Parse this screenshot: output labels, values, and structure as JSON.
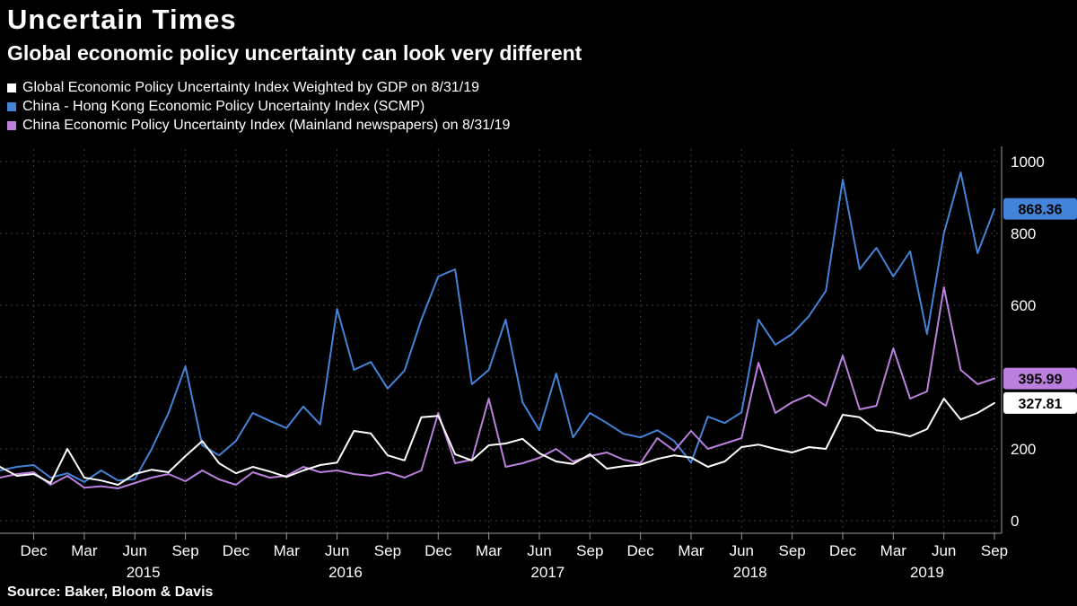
{
  "source": "Source: Baker, Bloom & Davis",
  "chart_data": {
    "type": "line",
    "title": "Uncertain Times",
    "subtitle": "Global economic policy uncertainty can look very different",
    "x_unit": "month",
    "x_start": "Oct 2014",
    "x_end": "Sep 2019",
    "ylim": [
      0,
      1000
    ],
    "y_ticks": [
      0,
      200,
      400,
      600,
      800,
      1000
    ],
    "grid": true,
    "legend_position": "top-left",
    "x_ticks": [
      {
        "index": 2,
        "label": "Dec"
      },
      {
        "index": 5,
        "label": "Mar"
      },
      {
        "index": 8,
        "label": "Jun"
      },
      {
        "index": 11,
        "label": "Sep"
      },
      {
        "index": 14,
        "label": "Dec"
      },
      {
        "index": 17,
        "label": "Mar"
      },
      {
        "index": 20,
        "label": "Jun"
      },
      {
        "index": 23,
        "label": "Sep"
      },
      {
        "index": 26,
        "label": "Dec"
      },
      {
        "index": 29,
        "label": "Mar"
      },
      {
        "index": 32,
        "label": "Jun"
      },
      {
        "index": 35,
        "label": "Sep"
      },
      {
        "index": 38,
        "label": "Dec"
      },
      {
        "index": 41,
        "label": "Mar"
      },
      {
        "index": 44,
        "label": "Jun"
      },
      {
        "index": 47,
        "label": "Sep"
      },
      {
        "index": 50,
        "label": "Dec"
      },
      {
        "index": 53,
        "label": "Mar"
      },
      {
        "index": 56,
        "label": "Jun"
      },
      {
        "index": 59,
        "label": "Sep"
      }
    ],
    "year_labels": [
      {
        "label": "2015",
        "index": 8.5
      },
      {
        "label": "2016",
        "index": 20.5
      },
      {
        "label": "2017",
        "index": 32.5
      },
      {
        "label": "2018",
        "index": 44.5
      },
      {
        "label": "2019",
        "index": 55
      }
    ],
    "series": [
      {
        "name": "china-hk-scmp",
        "label": "China - Hong Kong Economic Policy Uncertainty Index (SCMP)",
        "color": "#4484d8",
        "end_label": "868.36",
        "values": [
          140,
          150,
          155,
          120,
          132,
          108,
          140,
          112,
          116,
          200,
          300,
          430,
          210,
          182,
          222,
          300,
          278,
          258,
          318,
          268,
          590,
          420,
          442,
          368,
          418,
          560,
          680,
          700,
          380,
          420,
          560,
          330,
          252,
          410,
          232,
          300,
          272,
          242,
          232,
          252,
          222,
          162,
          290,
          272,
          302,
          560,
          490,
          520,
          570,
          640,
          950,
          700,
          760,
          680,
          750,
          520,
          800,
          970,
          745,
          868.36
        ]
      },
      {
        "name": "china-mainland",
        "label": "China Economic Policy Uncertainty Index (Mainland newspapers) on 8/31/19",
        "color": "#bb80de",
        "end_label": "395.99",
        "values": [
          120,
          130,
          135,
          100,
          125,
          92,
          96,
          90,
          105,
          120,
          130,
          110,
          140,
          115,
          100,
          135,
          120,
          125,
          150,
          135,
          140,
          130,
          125,
          135,
          120,
          140,
          300,
          160,
          170,
          340,
          150,
          160,
          175,
          200,
          165,
          180,
          190,
          170,
          160,
          230,
          195,
          250,
          200,
          215,
          230,
          440,
          300,
          330,
          350,
          320,
          460,
          310,
          320,
          480,
          340,
          360,
          650,
          420,
          380,
          395.99
        ]
      },
      {
        "name": "global-gdp-weighted",
        "label": "Global Economic Policy Uncertainty Index Weighted by GDP on 8/31/19",
        "color": "#ffffff",
        "end_label": "327.81",
        "values": [
          150,
          125,
          130,
          105,
          200,
          120,
          112,
          100,
          130,
          142,
          135,
          180,
          222,
          160,
          132,
          150,
          137,
          122,
          140,
          155,
          162,
          250,
          243,
          182,
          168,
          288,
          292,
          185,
          168,
          210,
          215,
          228,
          188,
          165,
          158,
          185,
          145,
          152,
          156,
          172,
          182,
          176,
          150,
          165,
          205,
          212,
          200,
          190,
          205,
          200,
          295,
          288,
          252,
          246,
          235,
          255,
          340,
          282,
          300,
          327.81
        ]
      }
    ],
    "legend_order": [
      2,
      0,
      1
    ]
  }
}
